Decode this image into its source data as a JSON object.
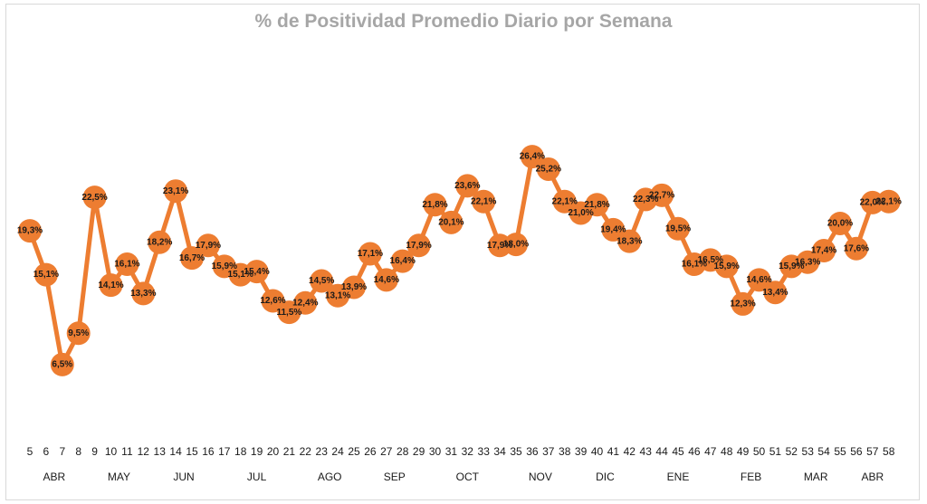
{
  "chart_data": {
    "type": "line",
    "title": "% de Positividad Promedio Diario por Semana",
    "xlabel": "",
    "ylabel": "",
    "ylim": [
      0,
      35
    ],
    "grid": false,
    "legend": "none",
    "x": [
      5,
      6,
      7,
      8,
      9,
      10,
      11,
      12,
      13,
      14,
      15,
      16,
      17,
      18,
      19,
      20,
      21,
      22,
      23,
      24,
      25,
      26,
      27,
      28,
      29,
      30,
      31,
      32,
      33,
      34,
      35,
      36,
      37,
      38,
      39,
      40,
      41,
      42,
      43,
      44,
      45,
      46,
      47,
      48,
      49,
      50,
      51,
      52,
      53,
      54,
      55,
      56,
      57,
      58
    ],
    "values": [
      19.3,
      15.1,
      6.5,
      9.5,
      22.5,
      14.1,
      16.1,
      13.3,
      18.2,
      23.1,
      16.7,
      17.9,
      15.9,
      15.1,
      15.4,
      12.6,
      11.5,
      12.4,
      14.5,
      13.1,
      13.9,
      17.1,
      14.6,
      16.4,
      17.9,
      21.8,
      20.1,
      23.6,
      22.1,
      17.9,
      18.0,
      26.4,
      25.2,
      22.1,
      21.0,
      21.8,
      19.4,
      18.3,
      22.3,
      22.7,
      19.5,
      16.1,
      16.5,
      15.9,
      12.3,
      14.6,
      13.4,
      15.9,
      16.3,
      17.4,
      20.0,
      17.6,
      22.0,
      22.1
    ],
    "point_labels": [
      "19,3%",
      "15,1%",
      "6,5%",
      "9,5%",
      "22,5%",
      "14,1%",
      "16,1%",
      "13,3%",
      "18,2%",
      "23,1%",
      "16,7%",
      "17,9%",
      "15,9%",
      "15,1%",
      "15,4%",
      "12,6%",
      "11,5%",
      "12,4%",
      "14,5%",
      "13,1%",
      "13,9%",
      "17,1%",
      "14,6%",
      "16,4%",
      "17,9%",
      "21,8%",
      "20,1%",
      "23,6%",
      "22,1%",
      "17,9%",
      "18,0%",
      "26,4%",
      "25,2%",
      "22,1%",
      "21,0%",
      "21,8%",
      "19,4%",
      "18,3%",
      "22,3%",
      "22,7%",
      "19,5%",
      "16,1%",
      "16,5%",
      "15,9%",
      "12,3%",
      "14,6%",
      "13,4%",
      "15,9%",
      "16,3%",
      "17,4%",
      "20,0%",
      "17,6%",
      "22,0%",
      "22,1%"
    ],
    "months": [
      {
        "label": "ABR",
        "weeks": [
          5,
          8
        ]
      },
      {
        "label": "MAY",
        "weeks": [
          9,
          12
        ]
      },
      {
        "label": "JUN",
        "weeks": [
          13,
          16
        ]
      },
      {
        "label": "JUL",
        "weeks": [
          17,
          21
        ]
      },
      {
        "label": "AGO",
        "weeks": [
          22,
          25
        ]
      },
      {
        "label": "SEP",
        "weeks": [
          26,
          29
        ]
      },
      {
        "label": "OCT",
        "weeks": [
          30,
          34
        ]
      },
      {
        "label": "NOV",
        "weeks": [
          35,
          38
        ]
      },
      {
        "label": "DIC",
        "weeks": [
          39,
          42
        ]
      },
      {
        "label": "ENE",
        "weeks": [
          43,
          47
        ]
      },
      {
        "label": "FEB",
        "weeks": [
          48,
          51
        ]
      },
      {
        "label": "MAR",
        "weeks": [
          52,
          55
        ]
      },
      {
        "label": "ABR",
        "weeks": [
          56,
          58
        ]
      }
    ],
    "colors": {
      "line": "#ed7d31",
      "marker": "#ed7d31",
      "title": "#a6a6a6"
    }
  }
}
